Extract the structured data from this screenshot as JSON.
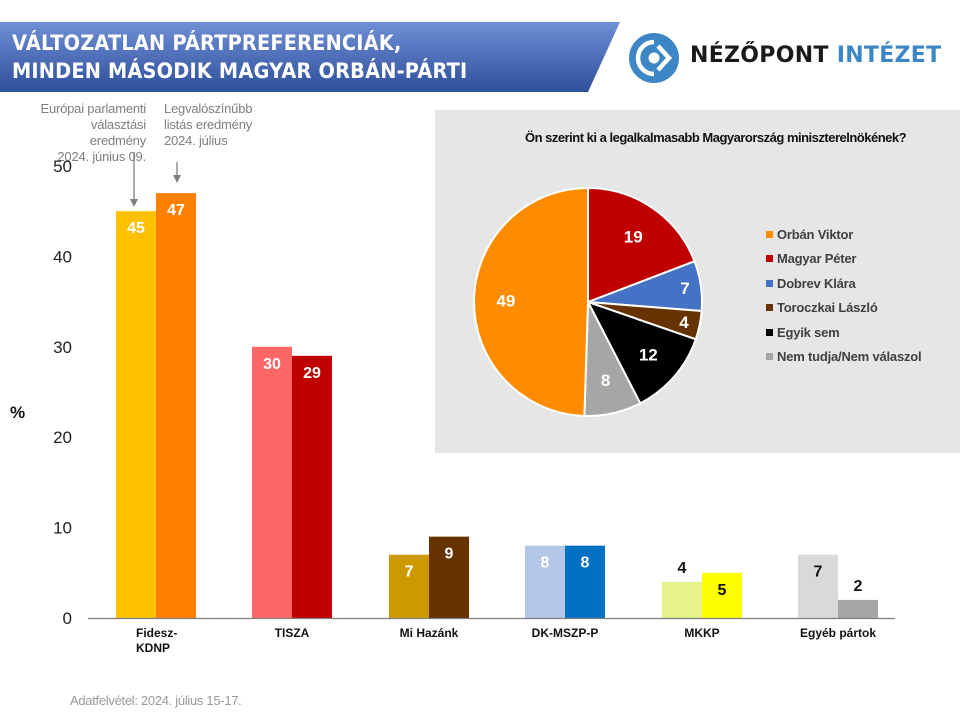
{
  "banner": {
    "line1": "VÁLTOZATLAN PÁRTPREFERENCIÁK,",
    "line2": "MINDEN MÁSODIK MAGYAR ORBÁN-PÁRTI",
    "color_dark": "#2e4f9a",
    "color_light": "#6f8fd6"
  },
  "logo": {
    "word1": "NÉZŐPONT",
    "word2": "INTÉZET",
    "color_word1": "#1a1a1a",
    "color_word2": "#3d86c6",
    "icon": "eye-target-icon"
  },
  "annotations": {
    "series1": [
      "Európai parlamenti",
      "választási eredmény",
      "2024. június 09."
    ],
    "series2": [
      "Legvalószínűbb",
      "listás eredmény",
      "2024. július"
    ]
  },
  "footer": "Adatfelvétel: 2024. július 15-17.",
  "chart_data": [
    {
      "type": "bar",
      "title": "",
      "xlabel": "",
      "ylabel": "%",
      "ylim": [
        0,
        50
      ],
      "yticks": [
        0,
        10,
        20,
        30,
        40,
        50
      ],
      "grid": false,
      "categories": [
        "Fidesz-\nKDNP",
        "TISZA",
        "Mi Hazánk",
        "DK-MSZP-P",
        "MKKP",
        "Egyéb pártok"
      ],
      "series": [
        {
          "name": "Európai parlamenti választási eredmény 2024. június 09.",
          "values": [
            45,
            30,
            7,
            8,
            4,
            7
          ],
          "colors": [
            "#ffc000",
            "#ff6666",
            "#cc9900",
            "#b4c7e7",
            "#e6f28a",
            "#d9d9d9"
          ],
          "label_colors": [
            "#ffffff",
            "#ffffff",
            "#ffffff",
            "#ffffff",
            "#111111",
            "#111111"
          ],
          "label_outside": [
            false,
            false,
            false,
            false,
            true,
            false
          ]
        },
        {
          "name": "Legvalószínűbb listás eredmény 2024. július",
          "values": [
            47,
            29,
            9,
            8,
            5,
            2
          ],
          "colors": [
            "#ff8000",
            "#c00000",
            "#663300",
            "#0070c0",
            "#ffff00",
            "#a6a6a6"
          ],
          "label_colors": [
            "#ffffff",
            "#ffffff",
            "#ffffff",
            "#ffffff",
            "#111111",
            "#111111"
          ],
          "label_outside": [
            false,
            false,
            false,
            false,
            false,
            true
          ]
        }
      ]
    },
    {
      "type": "pie",
      "title": "Ön szerint ki a legalkalmasabb Magyarország miniszterelnökének?",
      "legend_position": "right",
      "slices": [
        {
          "label": "Orbán Viktor",
          "value": 49,
          "color": "#ff8c00"
        },
        {
          "label": "Magyar Péter",
          "value": 19,
          "color": "#c00000"
        },
        {
          "label": "Dobrev Klára",
          "value": 7,
          "color": "#4472c4"
        },
        {
          "label": "Toroczkai László",
          "value": 4,
          "color": "#663300"
        },
        {
          "label": "Egyik sem",
          "value": 12,
          "color": "#000000"
        },
        {
          "label": "Nem tudja/Nem válaszol",
          "value": 8,
          "color": "#a6a6a6"
        }
      ],
      "draw_order": [
        "Magyar Péter",
        "Dobrev Klára",
        "Toroczkai László",
        "Egyik sem",
        "Nem tudja/Nem válaszol",
        "Orbán Viktor"
      ]
    }
  ]
}
